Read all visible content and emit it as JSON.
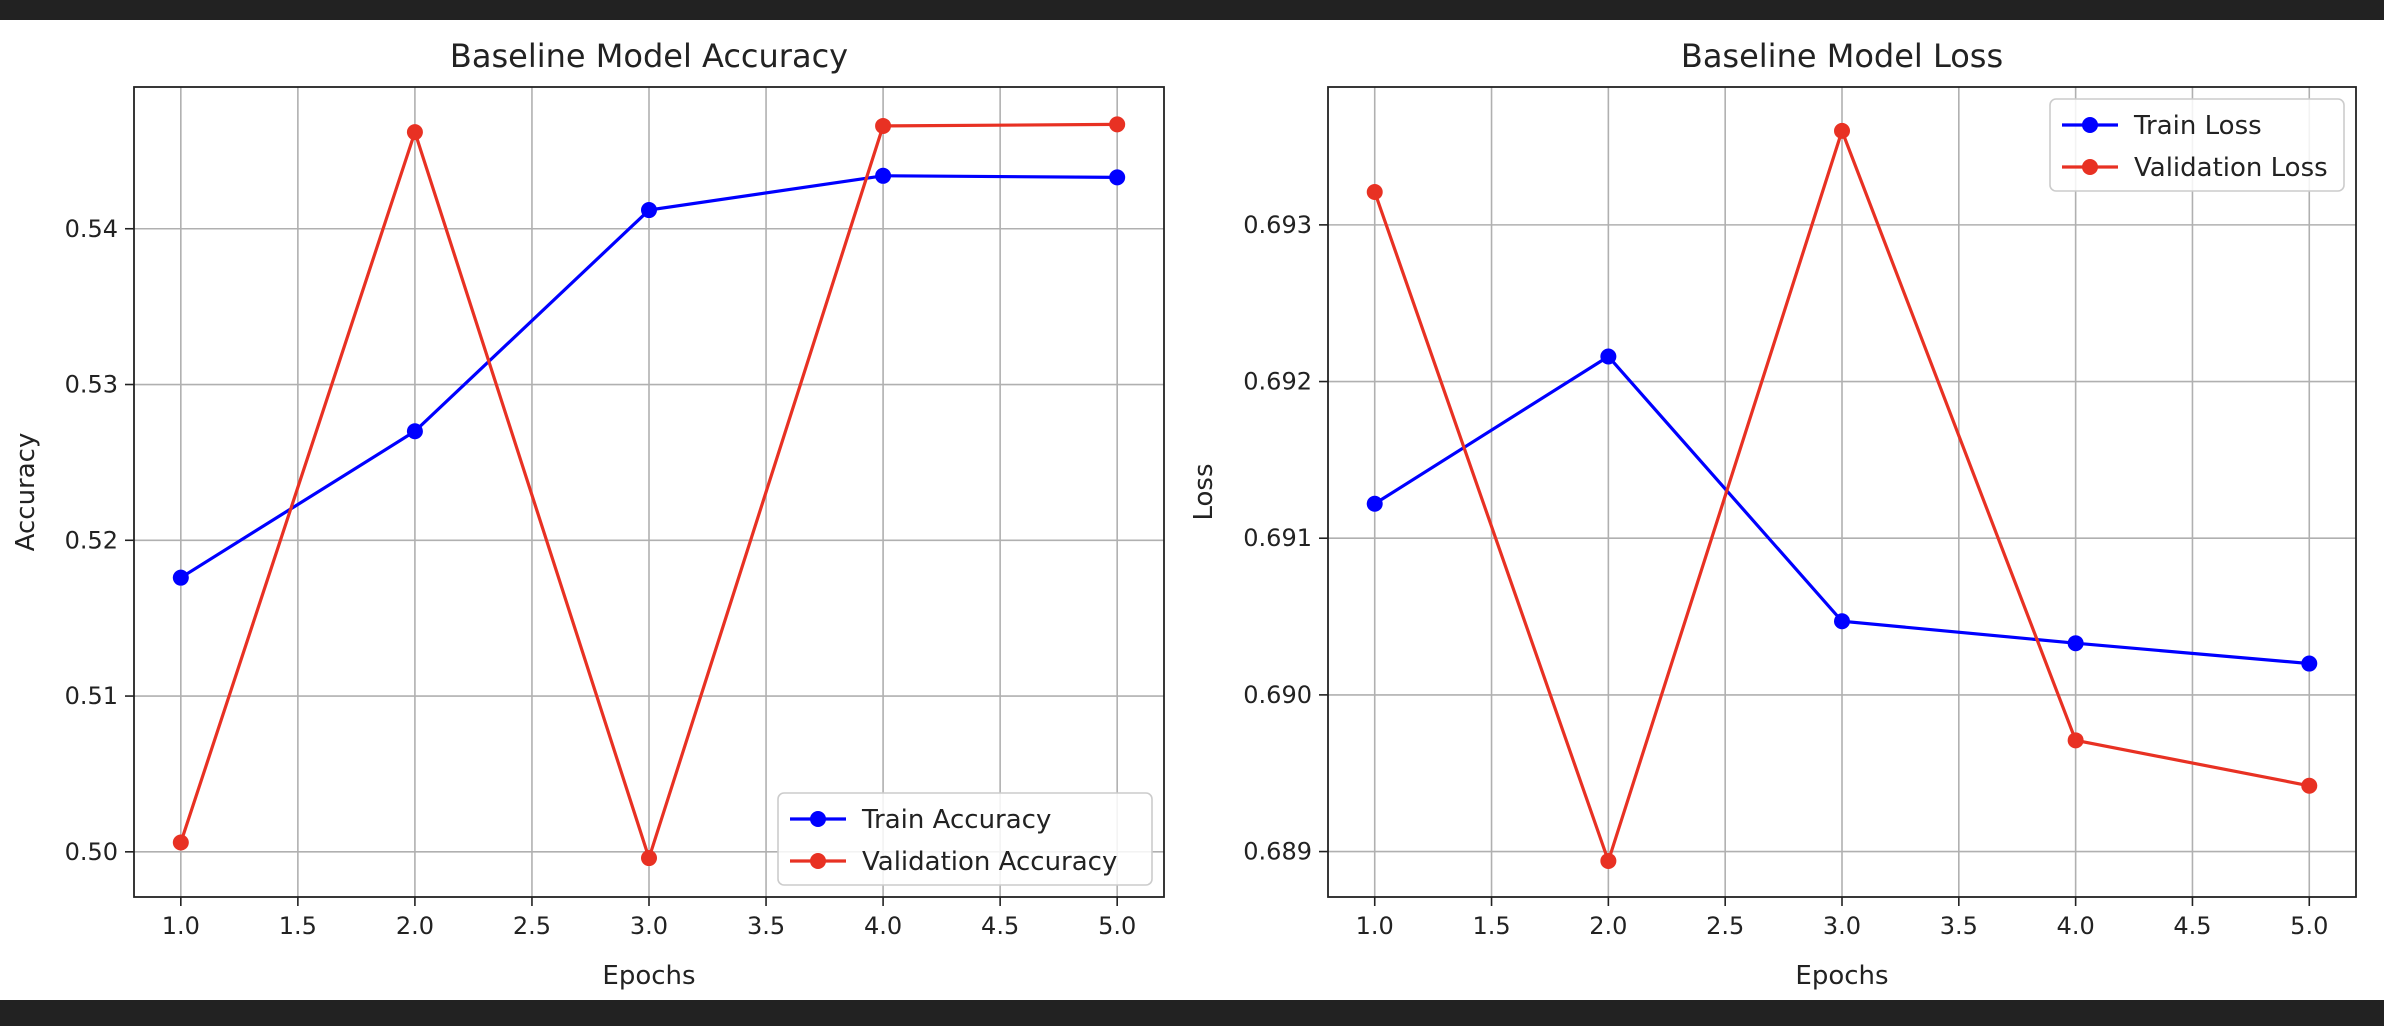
{
  "chart_data": [
    {
      "type": "line",
      "title": "Baseline Model Accuracy",
      "xlabel": "Epochs",
      "ylabel": "Accuracy",
      "x": [
        1.0,
        2.0,
        3.0,
        4.0,
        5.0
      ],
      "xlim": [
        0.8,
        5.2
      ],
      "ylim": [
        0.4971,
        0.5491
      ],
      "xticks": [
        "1.0",
        "1.5",
        "2.0",
        "2.5",
        "3.0",
        "3.5",
        "4.0",
        "4.5",
        "5.0"
      ],
      "yticks": [
        "0.50",
        "0.51",
        "0.52",
        "0.53",
        "0.54"
      ],
      "grid": true,
      "legend_position": "bottom-right",
      "series": [
        {
          "name": "Train Accuracy",
          "color": "#0000ff",
          "marker": "circle",
          "values": [
            0.5176,
            0.527,
            0.5412,
            0.5434,
            0.5433
          ]
        },
        {
          "name": "Validation Accuracy",
          "color": "#e83123",
          "marker": "circle",
          "values": [
            0.5006,
            0.5462,
            0.4996,
            0.5466,
            0.5467
          ]
        }
      ]
    },
    {
      "type": "line",
      "title": "Baseline Model Loss",
      "xlabel": "Epochs",
      "ylabel": "Loss",
      "x": [
        1.0,
        2.0,
        3.0,
        4.0,
        5.0
      ],
      "xlim": [
        0.8,
        5.2
      ],
      "ylim": [
        0.68871,
        0.69388
      ],
      "xticks": [
        "1.0",
        "1.5",
        "2.0",
        "2.5",
        "3.0",
        "3.5",
        "4.0",
        "4.5",
        "5.0"
      ],
      "yticks": [
        "0.689",
        "0.690",
        "0.691",
        "0.692",
        "0.693"
      ],
      "grid": true,
      "legend_position": "top-right",
      "series": [
        {
          "name": "Train Loss",
          "color": "#0000ff",
          "marker": "circle",
          "values": [
            0.69122,
            0.69216,
            0.69047,
            0.69033,
            0.6902
          ]
        },
        {
          "name": "Validation Loss",
          "color": "#e83123",
          "marker": "circle",
          "values": [
            0.69321,
            0.68894,
            0.6936,
            0.68971,
            0.68942
          ]
        }
      ]
    }
  ]
}
